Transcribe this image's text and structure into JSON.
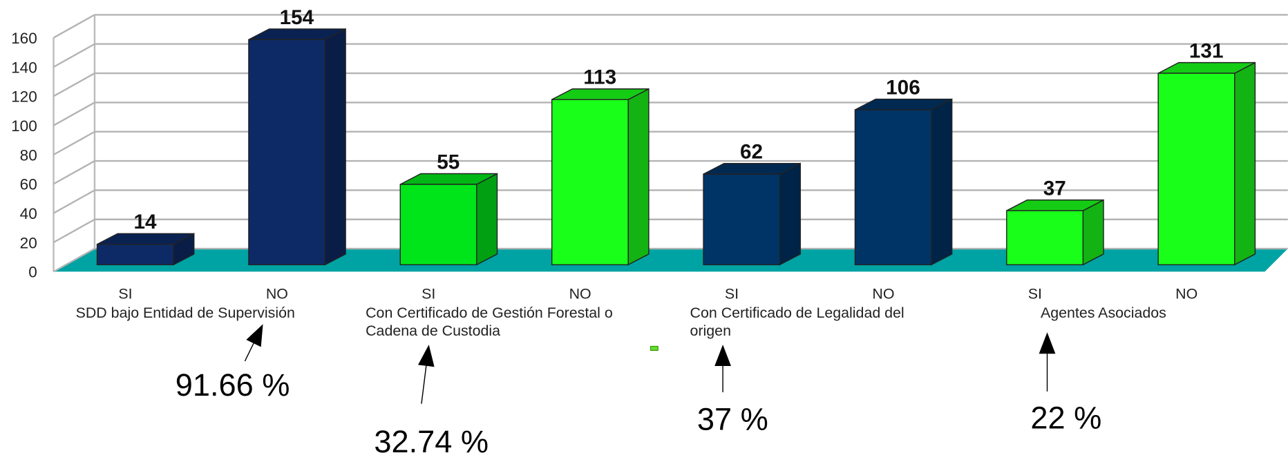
{
  "chart_data": {
    "type": "bar3d",
    "categories": [
      "SI",
      "NO",
      "SI",
      "NO",
      "SI",
      "NO",
      "SI",
      "NO"
    ],
    "groups": [
      [
        "SDD bajo Entidad de Supervisión"
      ],
      [
        "Con Certificado de Gestión Forestal o",
        "Cadena de Custodia"
      ],
      [
        "Con Certificado de Legalidad del",
        "origen"
      ],
      [
        "Agentes Asociados"
      ]
    ],
    "values": [
      14,
      154,
      55,
      113,
      62,
      106,
      37,
      131
    ],
    "colors": [
      "#0d2a66",
      "#0d2a66",
      "#00e51a",
      "#1aff1a",
      "#003366",
      "#003366",
      "#1aff1a",
      "#1aff1a"
    ],
    "floor_color": "#00a3a3",
    "ylim": [
      0,
      160
    ],
    "yticks": [
      0,
      20,
      40,
      60,
      80,
      100,
      120,
      140,
      160
    ],
    "grid": true,
    "annotations": [
      "91.66 %",
      "32.74 %",
      "37 %",
      "22 %"
    ]
  }
}
